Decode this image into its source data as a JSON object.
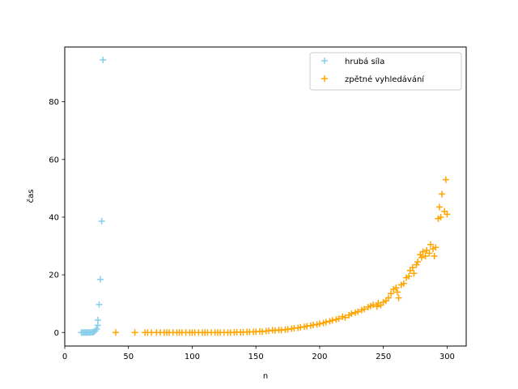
{
  "chart_data": {
    "type": "scatter",
    "xlabel": "n",
    "ylabel": "čas",
    "xlim": [
      0,
      315
    ],
    "ylim": [
      -4.7,
      99
    ],
    "xticks": [
      0,
      50,
      100,
      150,
      200,
      250,
      300
    ],
    "yticks": [
      0,
      20,
      40,
      60,
      80
    ],
    "marker": "+",
    "grid": false,
    "legend_position": "top-right",
    "series": [
      {
        "name": "hrubá síla",
        "color": "#87ceeb",
        "points": [
          [
            13,
            0.0
          ],
          [
            14,
            0.0
          ],
          [
            15,
            0.0
          ],
          [
            16,
            0.0
          ],
          [
            17,
            0.0
          ],
          [
            18,
            0.0
          ],
          [
            19,
            0.0
          ],
          [
            20,
            0.0
          ],
          [
            21,
            0.05
          ],
          [
            22,
            0.1
          ],
          [
            23,
            0.2
          ],
          [
            24,
            0.6
          ],
          [
            25,
            1.2
          ],
          [
            26,
            2.5
          ],
          [
            26,
            4.3
          ],
          [
            27,
            9.7
          ],
          [
            28,
            18.4
          ],
          [
            29,
            38.6
          ],
          [
            30,
            94.5
          ]
        ]
      },
      {
        "name": "zpětné vyhledávání",
        "color": "#ffa500",
        "points": [
          [
            40,
            0.0
          ],
          [
            55,
            0.0
          ],
          [
            63,
            0.0
          ],
          [
            65,
            0.0
          ],
          [
            68,
            0.0
          ],
          [
            72,
            0.0
          ],
          [
            75,
            0.0
          ],
          [
            78,
            0.0
          ],
          [
            80,
            0.0
          ],
          [
            82,
            0.0
          ],
          [
            85,
            0.0
          ],
          [
            88,
            0.0
          ],
          [
            90,
            0.0
          ],
          [
            92,
            0.0
          ],
          [
            95,
            0.0
          ],
          [
            98,
            0.0
          ],
          [
            100,
            0.0
          ],
          [
            102,
            0.0
          ],
          [
            105,
            0.0
          ],
          [
            108,
            0.0
          ],
          [
            110,
            0.0
          ],
          [
            112,
            0.0
          ],
          [
            115,
            0.0
          ],
          [
            118,
            0.0
          ],
          [
            120,
            0.0
          ],
          [
            122,
            0.0
          ],
          [
            125,
            0.0
          ],
          [
            128,
            0.0
          ],
          [
            130,
            0.0
          ],
          [
            133,
            0.05
          ],
          [
            135,
            0.1
          ],
          [
            138,
            0.1
          ],
          [
            140,
            0.1
          ],
          [
            143,
            0.2
          ],
          [
            145,
            0.2
          ],
          [
            148,
            0.2
          ],
          [
            150,
            0.3
          ],
          [
            153,
            0.4
          ],
          [
            155,
            0.3
          ],
          [
            158,
            0.5
          ],
          [
            160,
            0.6
          ],
          [
            163,
            0.8
          ],
          [
            165,
            0.7
          ],
          [
            168,
            0.9
          ],
          [
            170,
            0.8
          ],
          [
            173,
            1.0
          ],
          [
            175,
            1.1
          ],
          [
            178,
            1.3
          ],
          [
            180,
            1.5
          ],
          [
            183,
            1.6
          ],
          [
            185,
            1.8
          ],
          [
            188,
            2.0
          ],
          [
            190,
            2.2
          ],
          [
            193,
            2.4
          ],
          [
            195,
            2.6
          ],
          [
            198,
            2.8
          ],
          [
            200,
            3.0
          ],
          [
            203,
            3.3
          ],
          [
            205,
            3.6
          ],
          [
            208,
            3.9
          ],
          [
            210,
            4.2
          ],
          [
            213,
            4.5
          ],
          [
            215,
            4.8
          ],
          [
            218,
            5.5
          ],
          [
            220,
            5.2
          ],
          [
            223,
            6.0
          ],
          [
            225,
            6.5
          ],
          [
            228,
            6.9
          ],
          [
            230,
            7.2
          ],
          [
            233,
            7.8
          ],
          [
            235,
            8.1
          ],
          [
            238,
            8.8
          ],
          [
            240,
            9.2
          ],
          [
            242,
            9.6
          ],
          [
            245,
            9.0
          ],
          [
            246,
            10.2
          ],
          [
            248,
            9.5
          ],
          [
            250,
            10.5
          ],
          [
            252,
            11.0
          ],
          [
            254,
            12.0
          ],
          [
            256,
            13.5
          ],
          [
            258,
            15.0
          ],
          [
            260,
            15.5
          ],
          [
            261,
            14.0
          ],
          [
            262,
            12.0
          ],
          [
            264,
            16.5
          ],
          [
            266,
            17.0
          ],
          [
            268,
            19.0
          ],
          [
            270,
            19.5
          ],
          [
            271,
            21.5
          ],
          [
            273,
            22.5
          ],
          [
            274,
            20.5
          ],
          [
            276,
            23.5
          ],
          [
            277,
            24.5
          ],
          [
            279,
            27.0
          ],
          [
            280,
            26.0
          ],
          [
            281,
            28.0
          ],
          [
            283,
            26.5
          ],
          [
            284,
            28.5
          ],
          [
            286,
            27.5
          ],
          [
            287,
            30.5
          ],
          [
            289,
            29.0
          ],
          [
            290,
            26.5
          ],
          [
            291,
            29.5
          ],
          [
            293,
            39.5
          ],
          [
            294,
            43.5
          ],
          [
            295,
            40.0
          ],
          [
            296,
            48.0
          ],
          [
            298,
            42.0
          ],
          [
            299,
            53.0
          ],
          [
            300,
            41.0
          ]
        ]
      }
    ]
  }
}
